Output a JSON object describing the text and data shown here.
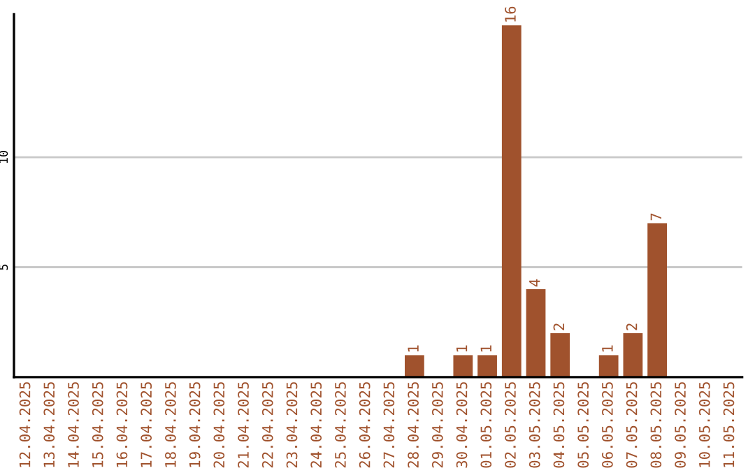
{
  "chart_data": {
    "type": "bar",
    "categories": [
      "12.04.2025",
      "13.04.2025",
      "14.04.2025",
      "15.04.2025",
      "16.04.2025",
      "17.04.2025",
      "18.04.2025",
      "19.04.2025",
      "20.04.2025",
      "21.04.2025",
      "22.04.2025",
      "23.04.2025",
      "24.04.2025",
      "25.04.2025",
      "26.04.2025",
      "27.04.2025",
      "28.04.2025",
      "29.04.2025",
      "30.04.2025",
      "01.05.2025",
      "02.05.2025",
      "03.05.2025",
      "04.05.2025",
      "05.05.2025",
      "06.05.2025",
      "07.05.2025",
      "08.05.2025",
      "09.05.2025",
      "10.05.2025",
      "11.05.2025"
    ],
    "values": [
      0,
      0,
      0,
      0,
      0,
      0,
      0,
      0,
      0,
      0,
      0,
      0,
      0,
      0,
      0,
      0,
      1,
      0,
      1,
      1,
      16,
      4,
      2,
      0,
      1,
      2,
      7,
      0,
      0,
      0
    ],
    "value_labels": [
      null,
      null,
      null,
      null,
      null,
      null,
      null,
      null,
      null,
      null,
      null,
      null,
      null,
      null,
      null,
      null,
      "1",
      null,
      "1",
      "1",
      "16",
      "4",
      "2",
      null,
      "1",
      "2",
      "7",
      null,
      null,
      null
    ],
    "color": "#a0522d",
    "ylim": [
      0,
      16.5
    ],
    "yticks": [
      5,
      10
    ],
    "grid": "y",
    "legend": false
  }
}
